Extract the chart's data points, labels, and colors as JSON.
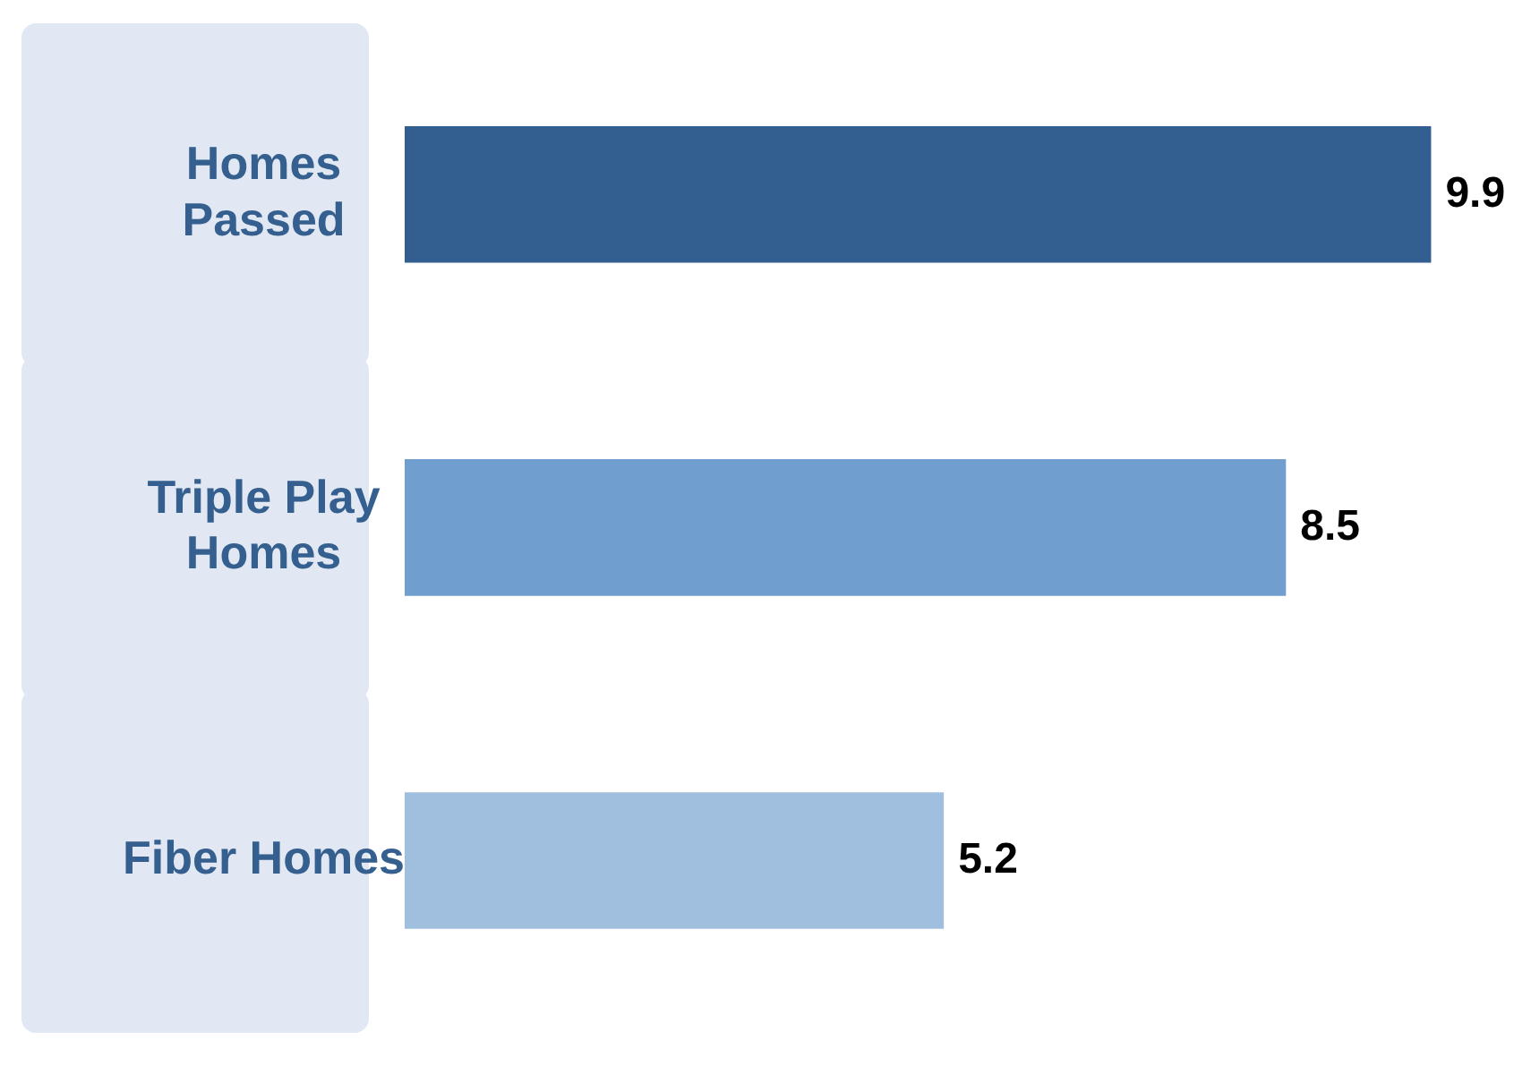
{
  "chart_data": {
    "type": "bar",
    "orientation": "horizontal",
    "categories": [
      "Homes Passed",
      "Triple Play Homes",
      "Fiber Homes"
    ],
    "values": [
      9.9,
      8.5,
      5.2
    ],
    "colors": [
      "#325f8f",
      "#709ecf",
      "#a0bfdf"
    ],
    "data_labels": true,
    "grid": false,
    "legend": false
  }
}
